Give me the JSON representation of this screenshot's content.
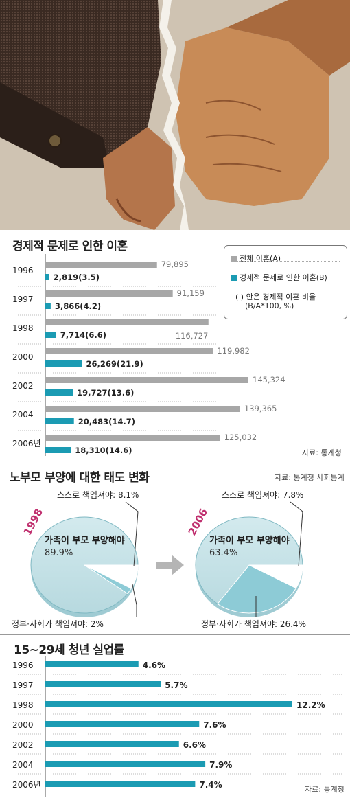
{
  "section1": {
    "title": "경제적 문제로 인한 이혼",
    "legend": {
      "total": "전체 이혼(A)",
      "economic": "경제적 문제로 인한 이혼(B)",
      "note1": "( ) 안은 경제적 이혼 비율",
      "note2": "(B/A*100, %)"
    },
    "source": "자료: 통계청"
  },
  "section2": {
    "title": "노부모 부양에 대한 태도 변화",
    "source": "자료: 통계청 사회통계",
    "pie1": {
      "year": "1998",
      "family_label": "가족이 부모 부양해야",
      "family_value": "89.9%",
      "self_label": "스스로 책임져야: 8.1%",
      "gov_label": "정부·사회가 책임져야: 2%"
    },
    "pie2": {
      "year": "2006",
      "family_label": "가족이 부모 부양해야",
      "family_value": "63.4%",
      "self_label": "스스로 책임져야: 7.8%",
      "gov_label": "정부·사회가 책임져야: 26.4%"
    }
  },
  "section3": {
    "title": "15~29세 청년 실업률",
    "source": "자료: 통계청"
  },
  "colors": {
    "gray": "#a7a7a7",
    "teal": "#1b9bb3",
    "pie_light": "#c8e3e8",
    "pie_mid": "#8dcbd6",
    "year_pink": "#c0306f"
  },
  "chart_data": [
    {
      "type": "bar",
      "title": "경제적 문제로 인한 이혼",
      "categories": [
        "1996",
        "1997",
        "1998",
        "2000",
        "2002",
        "2004",
        "2006년"
      ],
      "series": [
        {
          "name": "전체 이혼(A)",
          "values": [
            79895,
            91159,
            116727,
            119982,
            145324,
            139365,
            125032
          ],
          "labels": [
            "79,895",
            "91,159",
            "116,727",
            "119,982",
            "145,324",
            "139,365",
            "125,032"
          ]
        },
        {
          "name": "경제적 문제로 인한 이혼(B)",
          "values": [
            2819,
            3866,
            7714,
            26269,
            19727,
            20483,
            18310
          ],
          "labels": [
            "2,819(3.5)",
            "3,866(4.2)",
            "7,714(6.6)",
            "26,269(21.9)",
            "19,727(13.6)",
            "20,483(14.7)",
            "18,310(14.6)"
          ]
        }
      ]
    },
    {
      "type": "pie",
      "title": "1998",
      "slices": [
        {
          "name": "가족이 부모 부양해야",
          "value": 89.9
        },
        {
          "name": "스스로 책임져야",
          "value": 8.1
        },
        {
          "name": "정부·사회가 책임져야",
          "value": 2
        }
      ]
    },
    {
      "type": "pie",
      "title": "2006",
      "slices": [
        {
          "name": "가족이 부모 부양해야",
          "value": 63.4
        },
        {
          "name": "스스로 책임져야",
          "value": 7.8
        },
        {
          "name": "정부·사회가 책임져야",
          "value": 26.4
        }
      ]
    },
    {
      "type": "bar",
      "title": "15~29세 청년 실업률",
      "categories": [
        "1996",
        "1997",
        "1998",
        "2000",
        "2002",
        "2004",
        "2006년"
      ],
      "values": [
        4.6,
        5.7,
        12.2,
        7.6,
        6.6,
        7.9,
        7.4
      ],
      "labels": [
        "4.6%",
        "5.7%",
        "12.2%",
        "7.6%",
        "6.6%",
        "7.9%",
        "7.4%"
      ]
    }
  ]
}
